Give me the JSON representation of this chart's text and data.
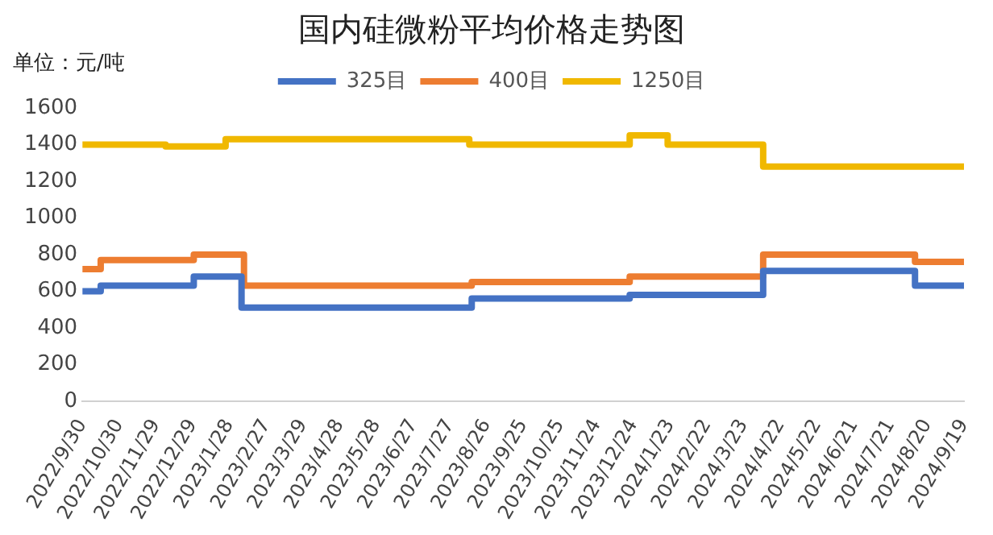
{
  "chart_data": {
    "type": "step",
    "title": "国内硅微粉平均价格走势图",
    "ylabel": "单位：元/吨",
    "xlim": [
      "2022-09-30",
      "2024-09-19"
    ],
    "xticks": [
      {
        "value": "2022-09-30",
        "label": "2022/9/30"
      },
      {
        "value": "2022-10-30",
        "label": "2022/10/30"
      },
      {
        "value": "2022-11-29",
        "label": "2022/11/29"
      },
      {
        "value": "2022-12-29",
        "label": "2022/12/29"
      },
      {
        "value": "2023-01-28",
        "label": "2023/1/28"
      },
      {
        "value": "2023-02-27",
        "label": "2023/2/27"
      },
      {
        "value": "2023-03-29",
        "label": "2023/3/29"
      },
      {
        "value": "2023-04-28",
        "label": "2023/4/28"
      },
      {
        "value": "2023-05-28",
        "label": "2023/5/28"
      },
      {
        "value": "2023-06-27",
        "label": "2023/6/27"
      },
      {
        "value": "2023-07-27",
        "label": "2023/7/27"
      },
      {
        "value": "2023-08-26",
        "label": "2023/8/26"
      },
      {
        "value": "2023-09-25",
        "label": "2023/9/25"
      },
      {
        "value": "2023-10-25",
        "label": "2023/10/25"
      },
      {
        "value": "2023-11-24",
        "label": "2023/11/24"
      },
      {
        "value": "2023-12-24",
        "label": "2023/12/24"
      },
      {
        "value": "2024-01-23",
        "label": "2024/1/23"
      },
      {
        "value": "2024-02-22",
        "label": "2024/2/22"
      },
      {
        "value": "2024-03-23",
        "label": "2024/3/23"
      },
      {
        "value": "2024-04-22",
        "label": "2024/4/22"
      },
      {
        "value": "2024-05-22",
        "label": "2024/5/22"
      },
      {
        "value": "2024-06-21",
        "label": "2024/6/21"
      },
      {
        "value": "2024-07-21",
        "label": "2024/7/21"
      },
      {
        "value": "2024-08-20",
        "label": "2024/8/20"
      },
      {
        "value": "2024-09-19",
        "label": "2024/9/19"
      }
    ],
    "ylim": [
      0,
      1600
    ],
    "yticks": [
      0,
      200,
      400,
      600,
      800,
      1000,
      1200,
      1400,
      1600
    ],
    "grid": false,
    "legend": "top",
    "series": [
      {
        "name": "325目",
        "color": "#4472c4",
        "x": [
          "2022-09-30",
          "2022-10-15",
          "2022-12-30",
          "2023-02-07",
          "2023-08-14",
          "2023-12-21",
          "2024-04-08",
          "2024-08-10",
          "2024-09-19"
        ],
        "values": [
          600,
          630,
          680,
          510,
          560,
          580,
          710,
          630,
          630
        ]
      },
      {
        "name": "400目",
        "color": "#ed7d31",
        "x": [
          "2022-09-30",
          "2022-10-15",
          "2022-12-30",
          "2023-02-09",
          "2023-08-14",
          "2023-12-21",
          "2024-04-08",
          "2024-08-10",
          "2024-09-19"
        ],
        "values": [
          720,
          770,
          800,
          630,
          650,
          680,
          800,
          760,
          760
        ]
      },
      {
        "name": "1250目",
        "color": "#f0b800",
        "x": [
          "2022-09-30",
          "2022-12-07",
          "2023-01-25",
          "2023-08-12",
          "2023-12-21",
          "2024-01-21",
          "2024-04-08",
          "2024-09-19"
        ],
        "values": [
          1400,
          1390,
          1430,
          1400,
          1450,
          1400,
          1280,
          1280
        ]
      }
    ]
  }
}
